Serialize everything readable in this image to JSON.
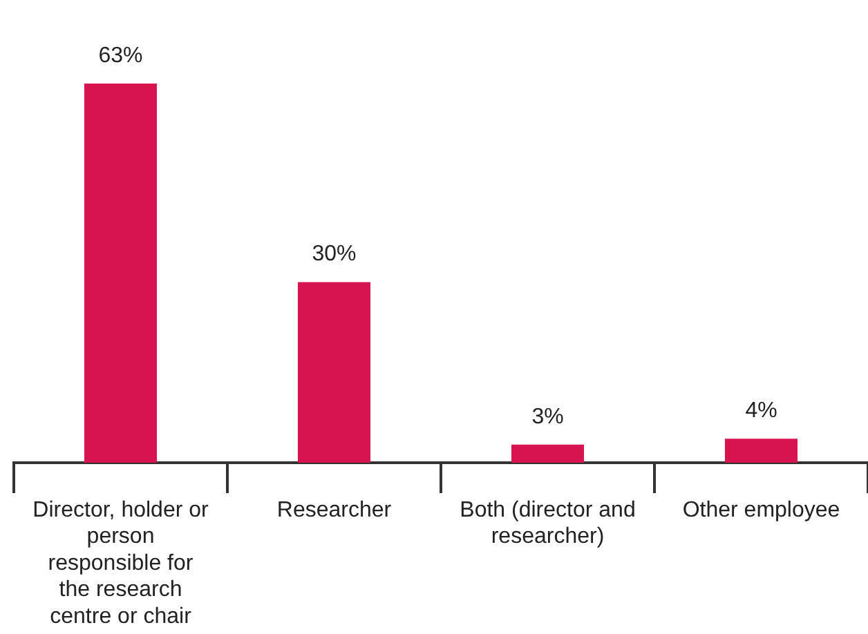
{
  "chart_data": {
    "type": "bar",
    "categories": [
      "Director, holder or person responsible for the research centre or chair",
      "Researcher",
      "Both (director and researcher)",
      "Other employee"
    ],
    "values": [
      63,
      30,
      3,
      4
    ],
    "value_labels": [
      "63%",
      "30%",
      "3%",
      "4%"
    ],
    "color": "#d81450",
    "grid": false,
    "legend": false
  }
}
